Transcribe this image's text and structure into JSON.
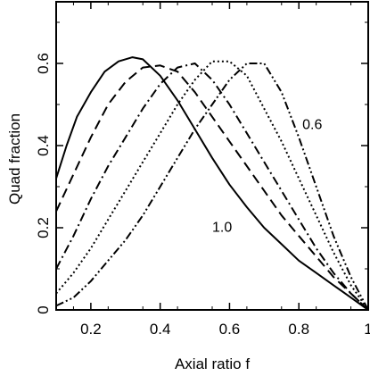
{
  "chart_data": {
    "type": "line",
    "title": "",
    "xlabel": "Axial ratio f",
    "ylabel": "Quad fraction",
    "xlim": [
      0.1,
      1.0
    ],
    "ylim": [
      0.0,
      0.75
    ],
    "xticks": [
      0.2,
      0.4,
      0.6,
      0.8,
      1
    ],
    "xtick_labels": [
      "0.2",
      "0.4",
      "0.6",
      "0.8",
      "1"
    ],
    "yticks": [
      0,
      0.2,
      0.4,
      0.6
    ],
    "ytick_labels": [
      "0",
      "0.2",
      "0.4",
      "0.6"
    ],
    "grid": false,
    "legend": "none",
    "annotations": [
      {
        "text": "0.6",
        "x": 0.81,
        "y": 0.44
      },
      {
        "text": "1.0",
        "x": 0.55,
        "y": 0.19
      }
    ],
    "series": [
      {
        "style": "solid",
        "x": [
          0.1,
          0.13,
          0.16,
          0.2,
          0.24,
          0.28,
          0.32,
          0.35,
          0.4,
          0.45,
          0.5,
          0.55,
          0.6,
          0.65,
          0.7,
          0.75,
          0.8,
          0.85,
          0.9,
          0.95,
          1.0
        ],
        "y": [
          0.32,
          0.4,
          0.47,
          0.53,
          0.58,
          0.605,
          0.615,
          0.61,
          0.57,
          0.51,
          0.44,
          0.37,
          0.305,
          0.25,
          0.2,
          0.16,
          0.12,
          0.09,
          0.06,
          0.03,
          0.0
        ]
      },
      {
        "style": "dashed",
        "x": [
          0.1,
          0.15,
          0.2,
          0.25,
          0.3,
          0.35,
          0.4,
          0.45,
          0.5,
          0.55,
          0.6,
          0.65,
          0.7,
          0.75,
          0.8,
          0.85,
          0.9,
          0.95,
          1.0
        ],
        "y": [
          0.24,
          0.33,
          0.42,
          0.5,
          0.555,
          0.59,
          0.595,
          0.58,
          0.53,
          0.47,
          0.41,
          0.35,
          0.29,
          0.23,
          0.18,
          0.13,
          0.08,
          0.04,
          0.0
        ]
      },
      {
        "style": "dash-dot",
        "x": [
          0.1,
          0.15,
          0.2,
          0.25,
          0.3,
          0.35,
          0.4,
          0.45,
          0.5,
          0.55,
          0.6,
          0.65,
          0.7,
          0.75,
          0.8,
          0.85,
          0.9,
          0.95,
          1.0
        ],
        "y": [
          0.1,
          0.18,
          0.27,
          0.35,
          0.42,
          0.49,
          0.55,
          0.59,
          0.6,
          0.56,
          0.5,
          0.43,
          0.36,
          0.29,
          0.22,
          0.15,
          0.09,
          0.04,
          0.0
        ]
      },
      {
        "style": "dotted",
        "x": [
          0.1,
          0.15,
          0.2,
          0.25,
          0.3,
          0.35,
          0.4,
          0.45,
          0.5,
          0.55,
          0.6,
          0.65,
          0.7,
          0.75,
          0.8,
          0.85,
          0.9,
          0.95,
          1.0
        ],
        "y": [
          0.04,
          0.09,
          0.15,
          0.22,
          0.29,
          0.36,
          0.43,
          0.5,
          0.56,
          0.605,
          0.605,
          0.57,
          0.49,
          0.41,
          0.32,
          0.23,
          0.14,
          0.06,
          0.0
        ]
      },
      {
        "style": "dash-dot-dot",
        "x": [
          0.1,
          0.15,
          0.2,
          0.25,
          0.3,
          0.35,
          0.4,
          0.45,
          0.5,
          0.55,
          0.6,
          0.65,
          0.7,
          0.75,
          0.8,
          0.85,
          0.9,
          0.95,
          1.0
        ],
        "y": [
          0.01,
          0.03,
          0.07,
          0.12,
          0.17,
          0.23,
          0.3,
          0.37,
          0.44,
          0.5,
          0.56,
          0.6,
          0.6,
          0.53,
          0.42,
          0.3,
          0.18,
          0.08,
          0.0
        ]
      }
    ]
  }
}
